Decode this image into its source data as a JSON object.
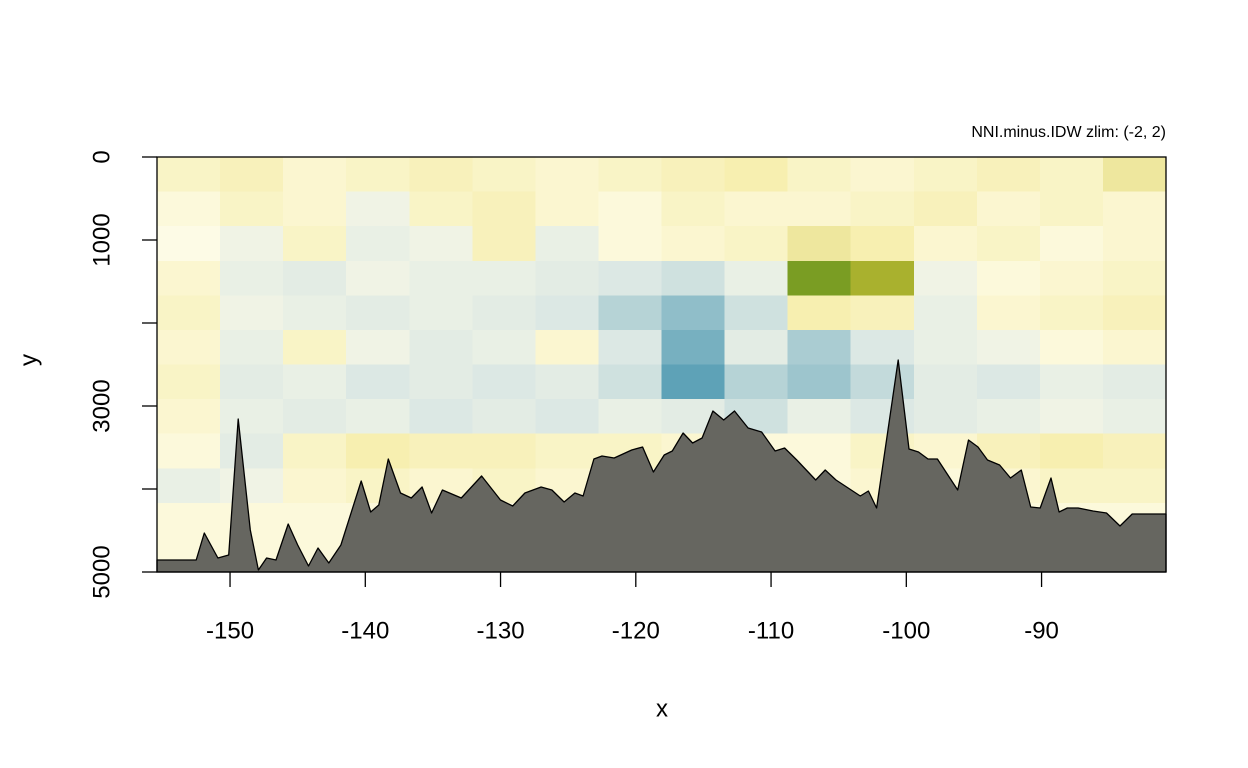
{
  "chart_data": {
    "type": "heatmap-area",
    "title": "NNI.minus.IDW   zlim: (-2, 2)",
    "x_label": "x",
    "y_label": "y",
    "xlim": [
      -155.4,
      -80.8
    ],
    "ylim": [
      5000,
      0
    ],
    "xticks": [
      -150,
      -140,
      -130,
      -120,
      -110,
      -100,
      -90
    ],
    "yticks": [
      0,
      1000,
      {
        "value": 2000,
        "label": null
      },
      3000,
      {
        "value": 4000,
        "label": null
      },
      5000
    ],
    "zlim": [
      -2,
      2
    ],
    "z": [
      [
        0.3,
        0.4,
        0.2,
        0.3,
        0.4,
        0.3,
        0.2,
        0.3,
        0.4,
        0.5,
        0.3,
        0.2,
        0.3,
        0.4,
        0.3,
        0.6
      ],
      [
        0.1,
        0.3,
        0.2,
        -0.2,
        0.3,
        0.4,
        0.2,
        0.1,
        0.3,
        0.2,
        0.2,
        0.3,
        0.4,
        0.2,
        0.3,
        0.2
      ],
      [
        0.0,
        -0.2,
        0.3,
        -0.3,
        -0.2,
        0.4,
        -0.3,
        0.1,
        0.2,
        0.3,
        0.6,
        0.5,
        0.2,
        0.3,
        0.1,
        0.2
      ],
      [
        0.2,
        -0.3,
        -0.4,
        -0.2,
        -0.3,
        -0.3,
        -0.4,
        -0.5,
        -0.6,
        -0.3,
        1.6,
        1.3,
        -0.2,
        0.1,
        0.2,
        0.3
      ],
      [
        0.3,
        -0.2,
        -0.3,
        -0.4,
        -0.3,
        -0.4,
        -0.5,
        -0.8,
        -1.1,
        -0.6,
        0.5,
        0.4,
        -0.3,
        0.2,
        0.3,
        0.4
      ],
      [
        0.2,
        -0.3,
        0.3,
        -0.2,
        -0.4,
        -0.3,
        0.2,
        -0.5,
        -1.3,
        -0.4,
        -0.9,
        -0.5,
        -0.3,
        -0.2,
        0.1,
        0.2
      ],
      [
        0.3,
        -0.4,
        -0.3,
        -0.5,
        -0.4,
        -0.5,
        -0.4,
        -0.6,
        -1.5,
        -0.8,
        -1.0,
        -0.7,
        -0.4,
        -0.5,
        -0.3,
        -0.4
      ],
      [
        0.2,
        -0.3,
        -0.4,
        -0.3,
        -0.5,
        -0.4,
        -0.5,
        -0.3,
        -0.4,
        -0.6,
        -0.3,
        -0.5,
        -0.4,
        -0.3,
        -0.2,
        -0.3
      ],
      [
        0.1,
        -0.4,
        0.3,
        0.5,
        0.4,
        0.4,
        0.3,
        0.3,
        0.2,
        0.1,
        0.1,
        0.3,
        0.2,
        0.4,
        0.5,
        0.4
      ],
      [
        -0.3,
        -0.2,
        0.2,
        0.3,
        0.2,
        0.3,
        0.2,
        0.1,
        0.1,
        0.1,
        0.1,
        0.2,
        0.1,
        0.2,
        0.3,
        0.3
      ],
      [
        0.1,
        0.1,
        0.1,
        0.1,
        0.1,
        0.1,
        0.1,
        0.1,
        0.1,
        0.1,
        0.1,
        0.1,
        0.1,
        0.1,
        0.1,
        0.1
      ],
      [
        0.1,
        0.1,
        0.1,
        0.1,
        0.1,
        0.1,
        0.1,
        0.1,
        0.1,
        0.1,
        0.1,
        0.1,
        0.1,
        0.1,
        0.1,
        0.1
      ]
    ],
    "seabed": {
      "color": "#666660",
      "x": [
        -155.4,
        -152.5,
        -151.9,
        -150.9,
        -150.1,
        -149.4,
        -148.5,
        -147.9,
        -147.3,
        -146.6,
        -145.7,
        -145.0,
        -144.2,
        -143.5,
        -142.7,
        -141.8,
        -140.3,
        -139.6,
        -139.0,
        -138.3,
        -137.4,
        -136.6,
        -135.8,
        -135.1,
        -134.3,
        -132.9,
        -131.4,
        -130.0,
        -129.1,
        -128.2,
        -127.0,
        -126.2,
        -125.3,
        -124.5,
        -123.9,
        -123.1,
        -122.5,
        -121.6,
        -120.3,
        -119.5,
        -118.7,
        -117.9,
        -117.3,
        -116.5,
        -115.8,
        -115.1,
        -114.3,
        -113.5,
        -112.7,
        -111.7,
        -110.7,
        -109.7,
        -109.0,
        -108.1,
        -106.7,
        -106.0,
        -105.2,
        -103.4,
        -102.8,
        -102.2,
        -100.6,
        -99.8,
        -99.1,
        -98.4,
        -97.7,
        -96.2,
        -95.4,
        -94.7,
        -94.0,
        -93.1,
        -92.3,
        -91.5,
        -90.8,
        -90.1,
        -89.3,
        -88.7,
        -88.1,
        -87.3,
        -86.2,
        -85.2,
        -84.2,
        -83.3,
        -80.8
      ],
      "values": [
        4855,
        4855,
        4530,
        4831,
        4795,
        3157,
        4494,
        4976,
        4831,
        4855,
        4422,
        4675,
        4928,
        4711,
        4891,
        4675,
        3904,
        4277,
        4193,
        3638,
        4048,
        4108,
        3976,
        4289,
        4012,
        4108,
        3843,
        4132,
        4205,
        4048,
        3976,
        4012,
        4157,
        4048,
        4084,
        3638,
        3602,
        3626,
        3530,
        3494,
        3795,
        3590,
        3542,
        3325,
        3446,
        3385,
        3060,
        3169,
        3060,
        3265,
        3313,
        3542,
        3506,
        3651,
        3892,
        3771,
        3892,
        4084,
        4024,
        4229,
        2446,
        3518,
        3554,
        3638,
        3638,
        4012,
        3410,
        3494,
        3651,
        3711,
        3867,
        3771,
        4217,
        4229,
        3867,
        4277,
        4229,
        4229,
        4265,
        4289,
        4446,
        4301,
        4301
      ]
    }
  }
}
